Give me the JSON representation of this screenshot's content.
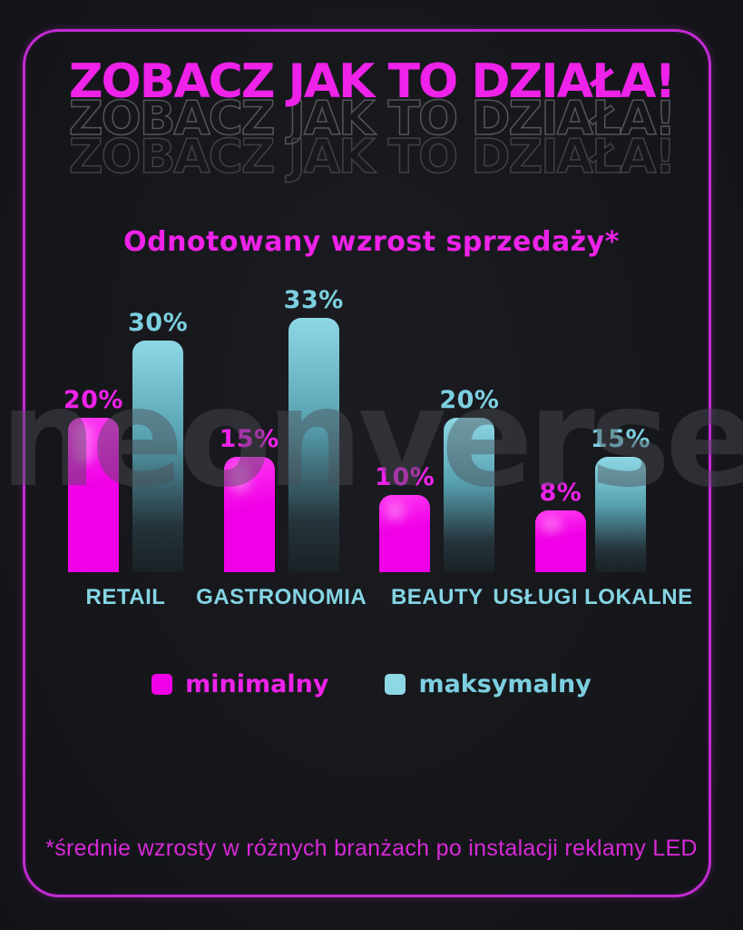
{
  "poster": {
    "title": "ZOBACZ JAK TO DZIAŁA!",
    "title_echo_1": "ZOBACZ JAK TO DZIAŁA!",
    "title_echo_2": "ZOBACZ JAK TO DZIAŁA!",
    "watermark": "neonverse",
    "footnote": "*średnie wzrosty w różnych branżach po instalacji reklamy LED"
  },
  "chart_data": {
    "type": "bar",
    "title": "Odnotowany wzrost sprzedaży*",
    "categories": [
      "RETAIL",
      "GASTRONOMIA",
      "BEAUTY",
      "USŁUGI LOKALNE"
    ],
    "series": [
      {
        "name": "minimalny",
        "color": "#f000e6",
        "values": [
          20,
          15,
          10,
          8
        ]
      },
      {
        "name": "maksymalny",
        "color": "#8ed8e6",
        "values": [
          30,
          33,
          20,
          15
        ]
      }
    ],
    "value_labels": {
      "minimalny": [
        "20%",
        "15%",
        "10%",
        "8%"
      ],
      "maksymalny": [
        "30%",
        "33%",
        "20%",
        "15%"
      ]
    },
    "ylim": [
      0,
      35
    ],
    "grid": false,
    "legend_position": "bottom"
  },
  "colors": {
    "background": "#16171b",
    "frame_border": "#c32bd3",
    "title_magenta": "#ee22e9",
    "bar_magenta": "#f000e6",
    "bar_cyan_top": "#8ed8e6",
    "category_label_cyan": "#85d5e5",
    "footnote_magenta": "#d829d8"
  }
}
